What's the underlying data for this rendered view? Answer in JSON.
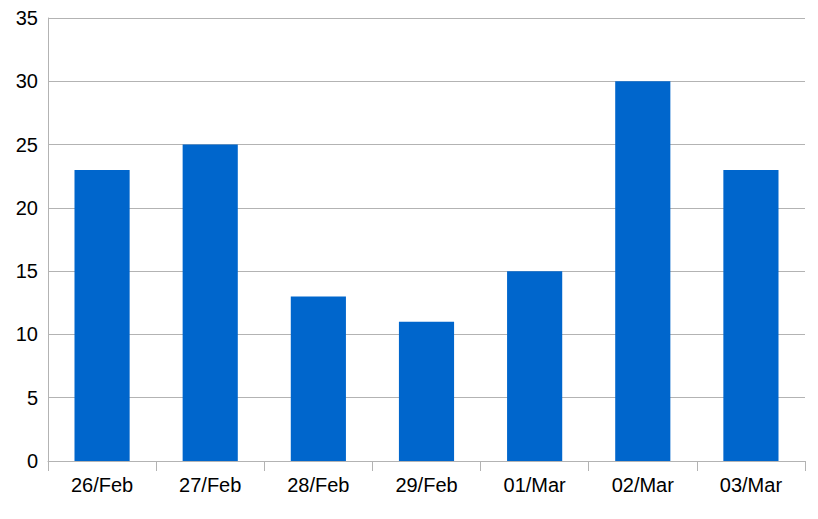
{
  "chart_data": {
    "type": "bar",
    "categories": [
      "26/Feb",
      "27/Feb",
      "28/Feb",
      "29/Feb",
      "01/Mar",
      "02/Mar",
      "03/Mar"
    ],
    "values": [
      23,
      25,
      13,
      11,
      15,
      30,
      23
    ],
    "color": "#0066cc",
    "ylim": [
      0,
      35
    ],
    "yticks": [
      0,
      5,
      10,
      15,
      20,
      25,
      30,
      35
    ],
    "grid": true
  }
}
